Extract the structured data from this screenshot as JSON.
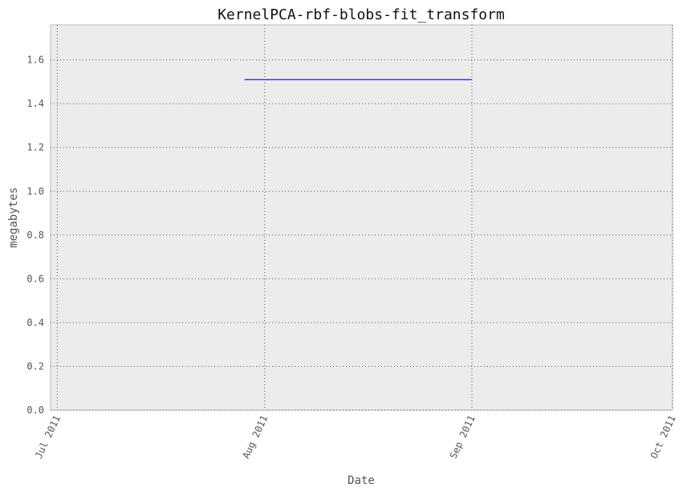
{
  "chart_data": {
    "type": "line",
    "title": "KernelPCA-rbf-blobs-fit_transform",
    "xlabel": "Date",
    "ylabel": "megabytes",
    "x_type": "date",
    "xlim": [
      "2011-06-30",
      "2011-10-01"
    ],
    "ylim": [
      0,
      1.76
    ],
    "x_ticks": [
      {
        "value": "2011-07-01",
        "label": "Jul 2011"
      },
      {
        "value": "2011-08-01",
        "label": "Aug 2011"
      },
      {
        "value": "2011-09-01",
        "label": "Sep 2011"
      },
      {
        "value": "2011-10-01",
        "label": "Oct 2011"
      }
    ],
    "y_ticks": [
      {
        "value": 0.0,
        "label": "0.0"
      },
      {
        "value": 0.2,
        "label": "0.2"
      },
      {
        "value": 0.4,
        "label": "0.4"
      },
      {
        "value": 0.6,
        "label": "0.6"
      },
      {
        "value": 0.8,
        "label": "0.8"
      },
      {
        "value": 1.0,
        "label": "1.0"
      },
      {
        "value": 1.2,
        "label": "1.2"
      },
      {
        "value": 1.4,
        "label": "1.4"
      },
      {
        "value": 1.6,
        "label": "1.6"
      }
    ],
    "grid": true,
    "series": [
      {
        "color": "#0000ff",
        "points": [
          {
            "x": "2011-07-29",
            "y": 1.51
          },
          {
            "x": "2011-09-01",
            "y": 1.51
          }
        ]
      }
    ]
  },
  "colors": {
    "plot_background": "#ececec",
    "grid": "#555555",
    "frame": "#bbbbbb",
    "line": "#0000ff"
  }
}
